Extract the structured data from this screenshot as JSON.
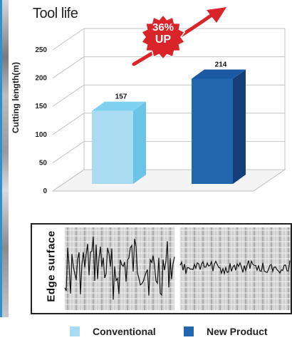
{
  "chart_data": {
    "type": "bar",
    "title": "Tool life",
    "ylabel": "Cutting length(m)",
    "categories": [
      "Conventional",
      "New Product"
    ],
    "values": [
      157,
      214
    ],
    "data_labels": [
      "157",
      "214"
    ],
    "yticks": [
      0,
      50,
      100,
      150,
      200,
      250
    ],
    "ylim": [
      0,
      250
    ],
    "grid": true,
    "legend": "bottom",
    "colors": {
      "conventional": "#a9dcf3",
      "new_product": "#2167ae"
    }
  },
  "badge": {
    "percent": "36%",
    "word": "UP",
    "color": "#d9252a"
  },
  "edge_panel": {
    "title": "Edge surface"
  },
  "legend": {
    "conventional": "Conventional",
    "new_product": "New Product"
  }
}
